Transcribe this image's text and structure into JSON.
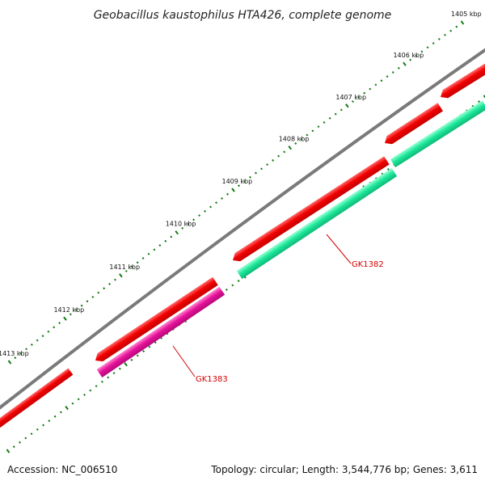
{
  "title": "Geobacillus kaustophilus HTA426, complete genome",
  "ticks": [
    {
      "label": "1405 kbp"
    },
    {
      "label": "1406 kbp"
    },
    {
      "label": "1407 kbp"
    },
    {
      "label": "1408 kbp"
    },
    {
      "label": "1409 kbp"
    },
    {
      "label": "1410 kbp"
    },
    {
      "label": "1411 kbp"
    },
    {
      "label": "1412 kbp"
    },
    {
      "label": "1413 kbp"
    }
  ],
  "genes": [
    {
      "name": "GK1382",
      "color": "#1ee89a"
    },
    {
      "name": "GK1383",
      "color": "#e8129a"
    }
  ],
  "colors": {
    "backbone": "#7a7a7a",
    "cds": "#f10000",
    "ticks": "#137a13",
    "label_line": "#d40000"
  },
  "footer": {
    "accession": "Accession: NC_006510",
    "summary": "Topology: circular; Length: 3,544,776 bp; Genes: 3,611"
  }
}
